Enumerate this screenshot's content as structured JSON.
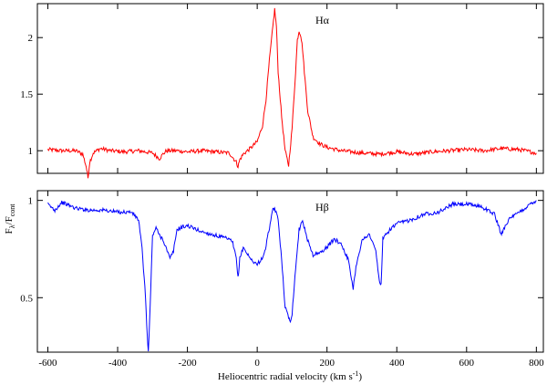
{
  "chart_data": {
    "type": "line",
    "xlabel_main": "Heliocentric radial velocity (km s",
    "xlabel_sup": "-1",
    "xlabel_close": ")",
    "ylabel": {
      "base": "F",
      "sub1": "λ",
      "mid": "/F",
      "sub2": "cont"
    },
    "xlim": [
      -630,
      820
    ],
    "xticks": [
      -600,
      -400,
      -200,
      0,
      200,
      400,
      600,
      800
    ],
    "xtick_labels": [
      "-600",
      "-400",
      "-200",
      "0",
      "200",
      "400",
      "600",
      "800"
    ],
    "grid": false,
    "panels": [
      {
        "label": "Hα",
        "color": "#ff0000",
        "ylim": [
          0.8,
          2.3
        ],
        "yticks": [
          1,
          1.5,
          2
        ],
        "ytick_labels": [
          "1",
          "1.5",
          "2"
        ],
        "series": [
          {
            "x": [
              -600,
              -560,
              -520,
              -500,
              -490,
              -485,
              -480,
              -470,
              -450,
              -420,
              -380,
              -340,
              -300,
              -280,
              -270,
              -260,
              -230,
              -200,
              -160,
              -120,
              -80,
              -60,
              -55,
              -50,
              -40,
              -20,
              0,
              15,
              25,
              35,
              45,
              50,
              55,
              60,
              70,
              80,
              90,
              100,
              110,
              115,
              120,
              125,
              130,
              135,
              145,
              160,
              180,
              200,
              240,
              300,
              350,
              400,
              450,
              500,
              550,
              600,
              650,
              700,
              750,
              800
            ],
            "y": [
              1.01,
              1.0,
              1.0,
              0.97,
              0.86,
              0.76,
              0.9,
              0.98,
              1.02,
              1.0,
              0.99,
              1.0,
              0.98,
              0.93,
              0.97,
              1.0,
              1.0,
              0.99,
              1.0,
              0.99,
              0.98,
              0.9,
              0.86,
              0.92,
              0.97,
              1.02,
              1.08,
              1.22,
              1.45,
              1.8,
              2.1,
              2.25,
              2.1,
              1.7,
              1.3,
              1.0,
              0.87,
              1.2,
              1.7,
              1.98,
              2.06,
              2.02,
              1.9,
              1.7,
              1.35,
              1.12,
              1.06,
              1.03,
              1.0,
              0.98,
              0.97,
              0.99,
              0.97,
              0.99,
              1.0,
              1.01,
              1.0,
              1.02,
              1.01,
              0.98
            ]
          }
        ]
      },
      {
        "label": "Hβ",
        "color": "#0000ff",
        "ylim": [
          0.22,
          1.05
        ],
        "yticks": [
          0.5,
          1
        ],
        "ytick_labels": [
          "0.5",
          "1"
        ],
        "series": [
          {
            "x": [
              -600,
              -580,
              -560,
              -520,
              -480,
              -440,
              -400,
              -360,
              -340,
              -330,
              -320,
              -315,
              -312,
              -310,
              -305,
              -300,
              -290,
              -280,
              -270,
              -260,
              -250,
              -240,
              -230,
              -220,
              -200,
              -160,
              -120,
              -80,
              -70,
              -60,
              -55,
              -50,
              -40,
              -20,
              0,
              20,
              35,
              45,
              50,
              60,
              70,
              80,
              90,
              95,
              100,
              110,
              120,
              130,
              140,
              160,
              180,
              200,
              220,
              240,
              260,
              270,
              275,
              285,
              300,
              320,
              340,
              350,
              355,
              360,
              380,
              400,
              440,
              480,
              520,
              560,
              600,
              640,
              680,
              700,
              705,
              720,
              760,
              790,
              800
            ],
            "y": [
              0.98,
              0.95,
              0.99,
              0.96,
              0.95,
              0.95,
              0.94,
              0.94,
              0.9,
              0.75,
              0.5,
              0.3,
              0.22,
              0.3,
              0.55,
              0.82,
              0.86,
              0.82,
              0.8,
              0.75,
              0.7,
              0.74,
              0.85,
              0.86,
              0.87,
              0.84,
              0.82,
              0.8,
              0.78,
              0.7,
              0.6,
              0.7,
              0.76,
              0.7,
              0.67,
              0.72,
              0.86,
              0.95,
              0.96,
              0.9,
              0.7,
              0.45,
              0.4,
              0.38,
              0.42,
              0.65,
              0.85,
              0.9,
              0.82,
              0.72,
              0.73,
              0.76,
              0.8,
              0.78,
              0.7,
              0.6,
              0.55,
              0.68,
              0.79,
              0.83,
              0.74,
              0.58,
              0.57,
              0.8,
              0.85,
              0.88,
              0.9,
              0.93,
              0.94,
              0.98,
              0.98,
              0.97,
              0.93,
              0.82,
              0.85,
              0.9,
              0.95,
              0.99,
              1.0
            ]
          }
        ]
      }
    ]
  }
}
